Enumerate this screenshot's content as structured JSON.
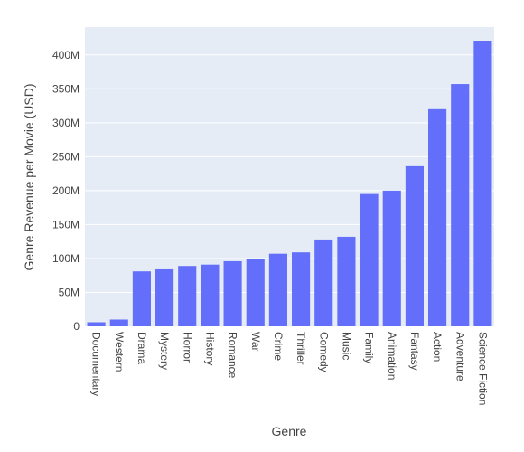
{
  "chart_data": {
    "type": "bar",
    "title": "",
    "xlabel": "Genre",
    "ylabel": "Genre Revenue per Movie (USD)",
    "categories": [
      "Documentary",
      "Western",
      "Drama",
      "Mystery",
      "Horror",
      "History",
      "Romance",
      "War",
      "Crime",
      "Thriller",
      "Comedy",
      "Music",
      "Family",
      "Animation",
      "Fantasy",
      "Action",
      "Adventure",
      "Science Fiction"
    ],
    "values": [
      6,
      10,
      81,
      84,
      89,
      91,
      96,
      99,
      107,
      109,
      128,
      132,
      195,
      200,
      236,
      320,
      357,
      421
    ],
    "unit": "M",
    "ylim": [
      0,
      441
    ],
    "yticks": [
      0,
      50,
      100,
      150,
      200,
      250,
      300,
      350,
      400
    ],
    "ytick_labels": [
      "0",
      "50M",
      "100M",
      "150M",
      "200M",
      "250M",
      "300M",
      "350M",
      "400M"
    ],
    "grid": true,
    "colors": {
      "bar": "#636efa",
      "plot_bg": "#e5ecf6",
      "grid": "#ffffff",
      "text": "#444444"
    }
  }
}
